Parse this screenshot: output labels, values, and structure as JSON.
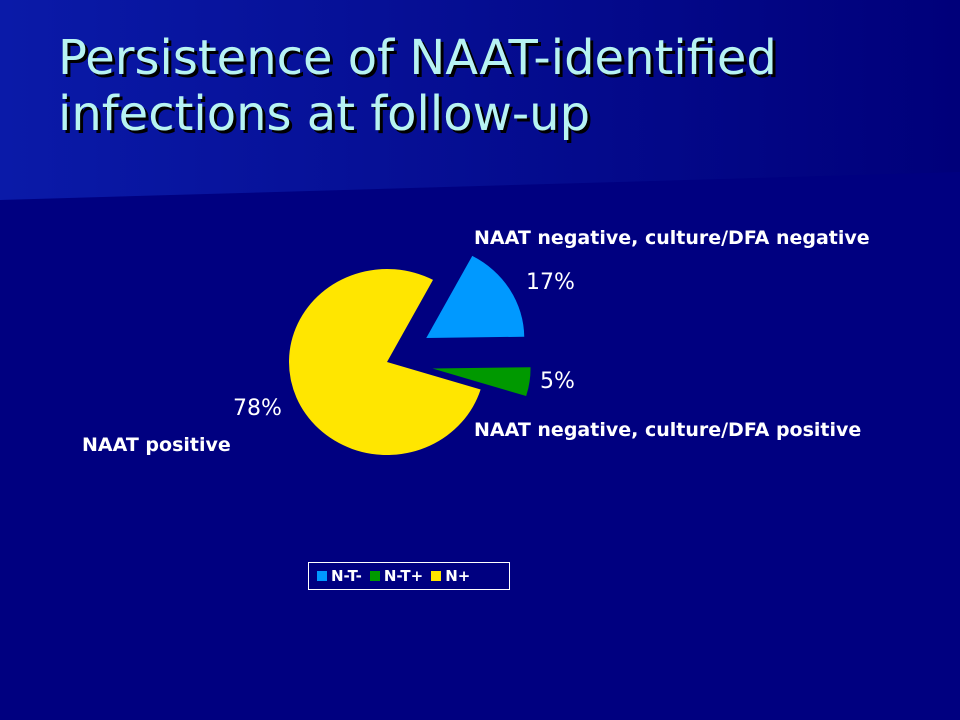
{
  "slide": {
    "title_line1": "Persistence of NAAT-identified",
    "title_line2": "infections at follow-up"
  },
  "colors": {
    "background": "#000080",
    "title": "#B7F3F2"
  },
  "chart_data": {
    "type": "pie",
    "title": "",
    "legend_position": "bottom",
    "exploded": [
      0,
      1
    ],
    "slices": [
      {
        "legend": "N-T-",
        "value": 17,
        "label": "17%",
        "callout": "NAAT negative, culture/DFA negative",
        "color": "#0099FF"
      },
      {
        "legend": "N-T+",
        "value": 5,
        "label": "5%",
        "callout": "NAAT negative, culture/DFA positive",
        "color": "#009900"
      },
      {
        "legend": "N+",
        "value": 78,
        "label": "78%",
        "callout": "NAAT positive",
        "color": "#FFE600"
      }
    ]
  }
}
